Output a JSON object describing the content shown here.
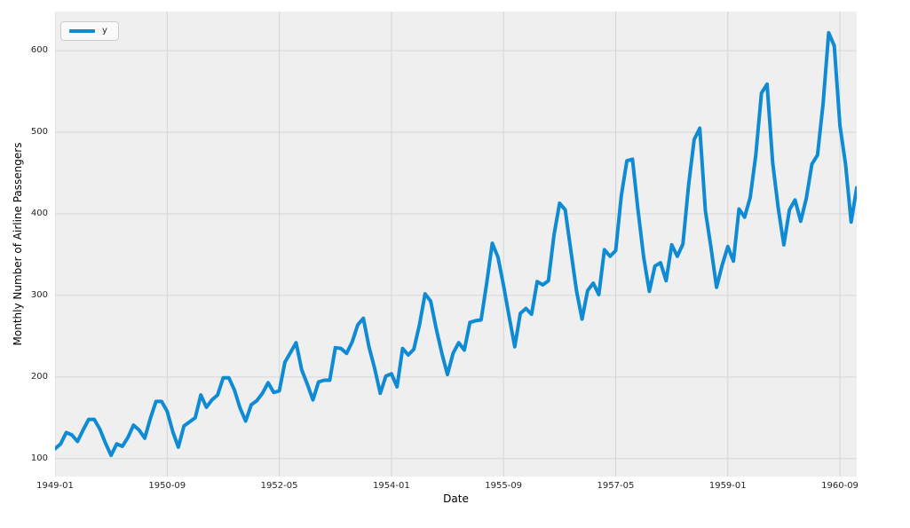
{
  "chart_data": {
    "type": "line",
    "title": "",
    "xlabel": "Date",
    "ylabel": "Monthly Number of Airline Passengers",
    "legend_position": "upper-left",
    "grid": true,
    "x_frequency": "monthly",
    "x_start": "1949-01",
    "x_end": "1960-12",
    "xlim_months": [
      0,
      143
    ],
    "ylim": [
      78,
      648
    ],
    "yticks": [
      100,
      200,
      300,
      400,
      500,
      600
    ],
    "xticks": [
      {
        "month_index": 0,
        "label": "1949-01"
      },
      {
        "month_index": 20,
        "label": "1950-09"
      },
      {
        "month_index": 40,
        "label": "1952-05"
      },
      {
        "month_index": 60,
        "label": "1954-01"
      },
      {
        "month_index": 80,
        "label": "1955-09"
      },
      {
        "month_index": 100,
        "label": "1957-05"
      },
      {
        "month_index": 120,
        "label": "1959-01"
      },
      {
        "month_index": 140,
        "label": "1960-09"
      }
    ],
    "series": [
      {
        "name": "y",
        "color": "#0f8bd4",
        "values": [
          112,
          118,
          132,
          129,
          121,
          135,
          148,
          148,
          136,
          119,
          104,
          118,
          115,
          126,
          141,
          135,
          125,
          149,
          170,
          170,
          158,
          133,
          114,
          140,
          145,
          150,
          178,
          163,
          172,
          178,
          199,
          199,
          184,
          162,
          146,
          166,
          171,
          180,
          193,
          181,
          183,
          218,
          230,
          242,
          209,
          191,
          172,
          194,
          196,
          196,
          236,
          235,
          229,
          243,
          264,
          272,
          237,
          211,
          180,
          201,
          204,
          188,
          235,
          227,
          234,
          264,
          302,
          293,
          259,
          229,
          203,
          229,
          242,
          233,
          267,
          269,
          270,
          315,
          364,
          347,
          312,
          274,
          237,
          278,
          284,
          277,
          317,
          313,
          318,
          374,
          413,
          405,
          355,
          306,
          271,
          306,
          315,
          301,
          356,
          348,
          355,
          422,
          465,
          467,
          404,
          347,
          305,
          336,
          340,
          318,
          362,
          348,
          363,
          435,
          491,
          505,
          404,
          359,
          310,
          337,
          360,
          342,
          406,
          396,
          420,
          472,
          548,
          559,
          463,
          407,
          362,
          405,
          417,
          391,
          419,
          461,
          472,
          535,
          622,
          606,
          508,
          461,
          390,
          432
        ]
      }
    ],
    "colors": {
      "figure_bg": "#ffffff",
      "plot_bg": "#efefef",
      "grid": "#d6d6d6",
      "tick_text": "#262626"
    }
  }
}
